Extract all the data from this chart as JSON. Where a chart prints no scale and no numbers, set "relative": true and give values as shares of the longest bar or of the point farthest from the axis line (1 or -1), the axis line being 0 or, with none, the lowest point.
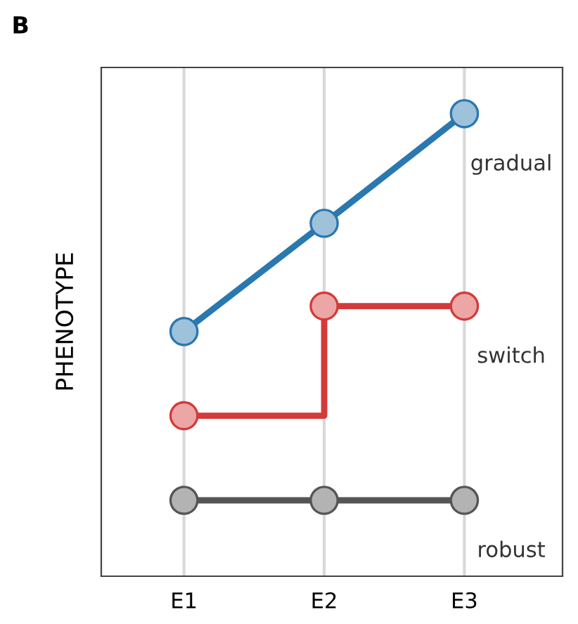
{
  "chart_data": {
    "type": "line",
    "title": "B",
    "ylabel": "PHENOTYPE",
    "categories": [
      "E1",
      "E2",
      "E3"
    ],
    "relative": true,
    "grid": "x",
    "marker": "circle",
    "line_style": "solid",
    "legend": false,
    "series": [
      {
        "name": "gradual",
        "color": "#2a78b0",
        "values": [
          0.529,
          0.763,
          1
        ]
      },
      {
        "name": "switch",
        "type": "step",
        "color": "#d43a3a",
        "values": [
          0.347,
          0.584,
          0.584
        ]
      },
      {
        "name": "robust",
        "color": "#555555",
        "values": [
          0.164,
          0.164,
          0.164
        ]
      }
    ]
  }
}
